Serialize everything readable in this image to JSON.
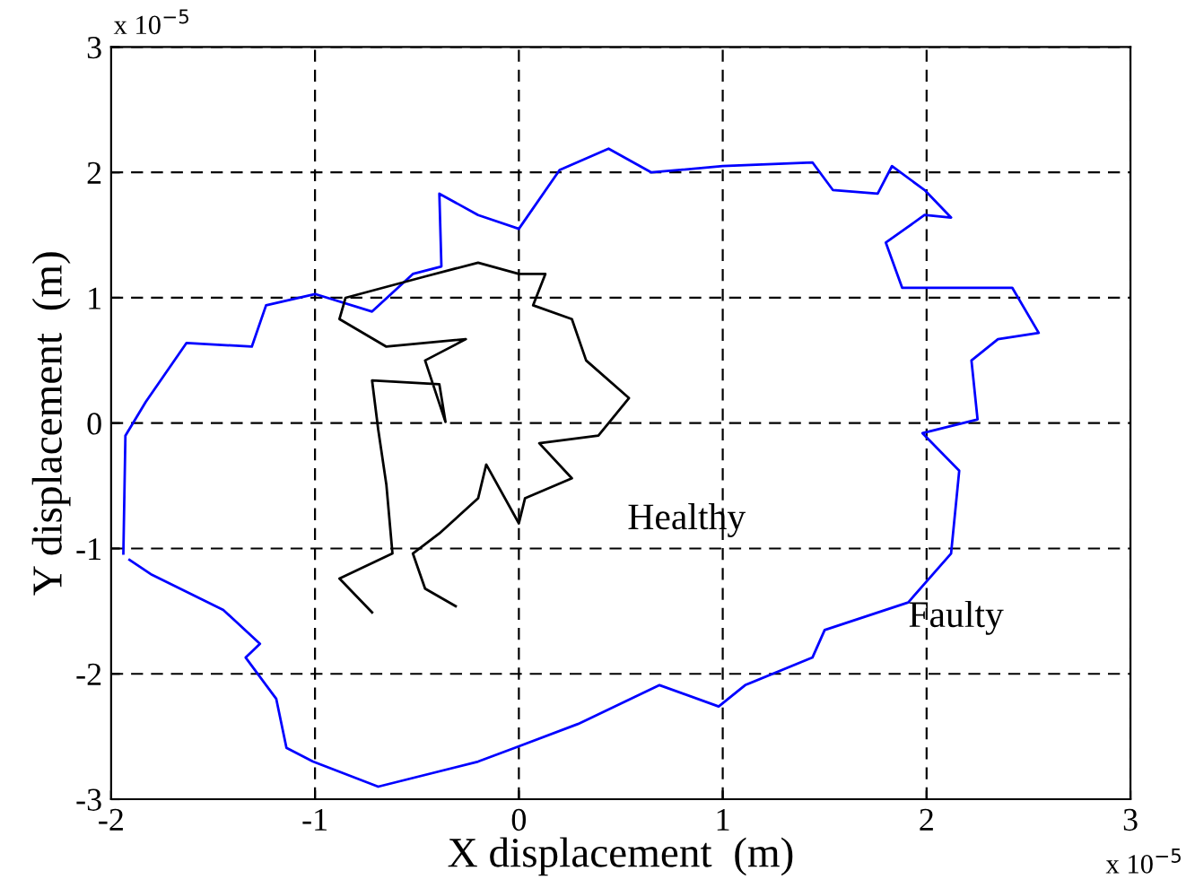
{
  "chart_data": {
    "type": "line",
    "xlabel": "X displacement  (m)",
    "ylabel": "Y displacement  (m)",
    "xlim": [
      -2,
      3
    ],
    "ylim": [
      -3,
      3
    ],
    "xticks": [
      -2,
      -1,
      0,
      1,
      2,
      3
    ],
    "yticks": [
      -3,
      -2,
      -1,
      0,
      1,
      2,
      3
    ],
    "grid": true,
    "line_style": "solid",
    "marker": "none",
    "annotations": [
      "Healthy",
      "Faulty",
      "x 10$^{−5}$",
      "x 10$^{−5}$"
    ],
    "series": [
      {
        "color": "#0000ff",
        "x": [
          -1.94,
          -1.93,
          -1.83,
          -1.63,
          -1.31,
          -1.24,
          -1.0,
          -0.72,
          -0.52,
          -0.38,
          -0.39,
          -0.2,
          0.0,
          0.2,
          0.44,
          0.65,
          1.0,
          1.44,
          1.54,
          1.76,
          1.83,
          1.99,
          2.12,
          1.99,
          1.8,
          1.88,
          2.09,
          2.42,
          2.55,
          2.35,
          2.22,
          2.25,
          1.98,
          2.16,
          2.12,
          1.91,
          1.5,
          1.44,
          1.11,
          0.98,
          0.69,
          0.29,
          -0.02,
          -0.2,
          -0.69,
          -1.01,
          -1.14,
          -1.19,
          -1.34,
          -1.27,
          -1.45,
          -1.8,
          -1.91
        ],
        "values": [
          -1.04,
          -0.1,
          0.17,
          0.64,
          0.61,
          0.94,
          1.03,
          0.89,
          1.19,
          1.25,
          1.83,
          1.66,
          1.55,
          2.02,
          2.19,
          2.0,
          2.05,
          2.08,
          1.86,
          1.83,
          2.05,
          1.86,
          1.64,
          1.66,
          1.44,
          1.08,
          1.08,
          1.08,
          0.72,
          0.67,
          0.5,
          0.03,
          -0.08,
          -0.38,
          -1.04,
          -1.43,
          -1.65,
          -1.87,
          -2.09,
          -2.26,
          -2.09,
          -2.4,
          -2.59,
          -2.7,
          -2.9,
          -2.7,
          -2.59,
          -2.2,
          -1.87,
          -1.76,
          -1.49,
          -1.21,
          -1.09
        ]
      },
      {
        "color": "#000000",
        "x": [
          -0.72,
          -0.88,
          -0.62,
          -0.65,
          -0.69,
          -0.72,
          -0.39,
          -0.36,
          -0.46,
          -0.26,
          -0.65,
          -0.88,
          -0.85,
          -0.46,
          -0.2,
          0.0,
          0.13,
          0.07,
          0.26,
          0.33,
          0.54,
          0.39,
          0.1,
          0.26,
          0.03,
          0.0,
          -0.16,
          -0.2,
          -0.39,
          -0.52,
          -0.46,
          -0.31
        ],
        "values": [
          -1.51,
          -1.24,
          -1.04,
          -0.49,
          -0.05,
          0.34,
          0.31,
          0.01,
          0.5,
          0.67,
          0.61,
          0.83,
          1.0,
          1.17,
          1.28,
          1.19,
          1.19,
          0.94,
          0.83,
          0.5,
          0.2,
          -0.1,
          -0.16,
          -0.44,
          -0.6,
          -0.8,
          -0.33,
          -0.6,
          -0.88,
          -1.04,
          -1.32,
          -1.46
        ]
      }
    ]
  }
}
